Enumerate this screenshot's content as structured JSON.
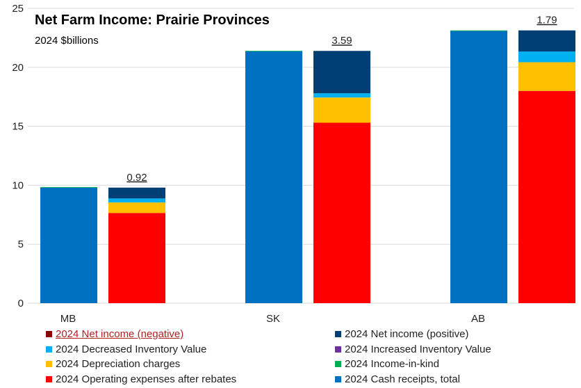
{
  "chart_data": {
    "type": "bar",
    "stacked": true,
    "title": "Net Farm Income: Prairie Provinces",
    "subtitle": "2024 $billions",
    "categories": [
      "MB",
      "SK",
      "AB"
    ],
    "ylim": [
      0,
      25
    ],
    "yticks": [
      "0",
      "5",
      "10",
      "15",
      "20",
      "25"
    ],
    "grid": true,
    "legend_position": "bottom",
    "receipts_bar": [
      {
        "name": "2024 Cash receipts, total",
        "color": "#0070C0",
        "values": [
          9.8,
          21.35,
          23.08
        ]
      },
      {
        "name": "2024 Income-in-kind",
        "color": "#00B050",
        "values": [
          0.05,
          0.05,
          0.05
        ]
      },
      {
        "name": "2024 Increased Inventory Value",
        "color": "#7030A0",
        "values": [
          0,
          0,
          0
        ]
      }
    ],
    "expenses_bar": [
      {
        "name": "2024 Operating expenses after rebates",
        "color": "#FF0000",
        "values": [
          7.65,
          15.3,
          18.0
        ]
      },
      {
        "name": "2024 Depreciation charges",
        "color": "#FFC000",
        "values": [
          0.89,
          2.14,
          2.43
        ]
      },
      {
        "name": "2024 Decreased Inventory Value",
        "color": "#00B0F0",
        "values": [
          0.34,
          0.36,
          0.91
        ]
      },
      {
        "name": "2024 Net income (positive)",
        "color": "#003F73",
        "values": [
          0.92,
          3.59,
          1.79
        ]
      },
      {
        "name": "2024 Net income (negative)",
        "color": "#8B0000",
        "values": [
          0,
          0,
          0
        ]
      }
    ],
    "data_labels": [
      "0.92",
      "3.59",
      "1.79"
    ],
    "legend": [
      {
        "label": "2024 Net income (negative)",
        "color": "#8B0000"
      },
      {
        "label": "2024 Net income (positive)",
        "color": "#003F73"
      },
      {
        "label": "2024 Decreased Inventory Value",
        "color": "#00B0F0"
      },
      {
        "label": "2024 Increased Inventory Value",
        "color": "#7030A0"
      },
      {
        "label": "2024 Depreciation charges",
        "color": "#FFC000"
      },
      {
        "label": "2024 Income-in-kind",
        "color": "#00B050"
      },
      {
        "label": "2024 Operating expenses after rebates",
        "color": "#FF0000"
      },
      {
        "label": "2024 Cash receipts, total",
        "color": "#0070C0"
      }
    ]
  }
}
